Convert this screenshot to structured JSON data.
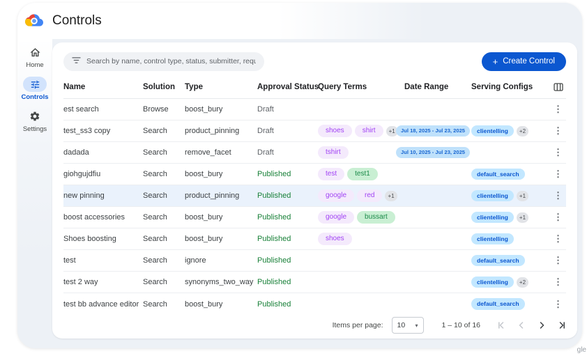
{
  "app": {
    "title": "Controls",
    "watermark": "gle"
  },
  "sidebar": {
    "items": [
      {
        "label": "Home",
        "icon": "home-icon",
        "active": false
      },
      {
        "label": "Controls",
        "icon": "tune-icon",
        "active": true
      },
      {
        "label": "Settings",
        "icon": "gear-icon",
        "active": false
      }
    ]
  },
  "toolbar": {
    "search_placeholder": "Search by name, control type, status, submitter, requested on",
    "create_button_plus": "+",
    "create_button_label": "Create Control"
  },
  "icons": {
    "search_filter": "filter-icon",
    "column_picker": "view-columns-icon",
    "row_menu_glyph": "⋮",
    "select_caret_glyph": "▾"
  },
  "table": {
    "columns": [
      "Name",
      "Solution",
      "Type",
      "Approval Status",
      "Query Terms",
      "Date Range",
      "Serving Configs"
    ],
    "rows": [
      {
        "name": "est search",
        "solution": "Browse",
        "type": "boost_bury",
        "status": "Draft",
        "query_terms": [],
        "query_more": "",
        "date_range": "",
        "serving_configs": [],
        "serving_more": "",
        "highlighted": false
      },
      {
        "name": "test_ss3 copy",
        "solution": "Search",
        "type": "product_pinning",
        "status": "Draft",
        "query_terms": [
          {
            "label": "shoes",
            "color": "purple"
          },
          {
            "label": "shirt",
            "color": "purple"
          }
        ],
        "query_more": "+1",
        "date_range": "Jul 18, 2025 - Jul 23, 2025",
        "serving_configs": [
          "clientelling"
        ],
        "serving_more": "+2",
        "highlighted": false
      },
      {
        "name": "dadada",
        "solution": "Search",
        "type": "remove_facet",
        "status": "Draft",
        "query_terms": [
          {
            "label": "tshirt",
            "color": "purple"
          }
        ],
        "query_more": "",
        "date_range": "Jul 10, 2025 - Jul 23, 2025",
        "serving_configs": [],
        "serving_more": "",
        "highlighted": false
      },
      {
        "name": "giohgujdfiu",
        "solution": "Search",
        "type": "boost_bury",
        "status": "Published",
        "query_terms": [
          {
            "label": "test",
            "color": "purple"
          },
          {
            "label": "test1",
            "color": "green"
          }
        ],
        "query_more": "",
        "date_range": "",
        "serving_configs": [
          "default_search"
        ],
        "serving_more": "",
        "highlighted": false
      },
      {
        "name": "new pinning",
        "solution": "Search",
        "type": "product_pinning",
        "status": "Published",
        "query_terms": [
          {
            "label": "google",
            "color": "purple"
          },
          {
            "label": "red",
            "color": "purple"
          }
        ],
        "query_more": "+1",
        "date_range": "",
        "serving_configs": [
          "clientelling"
        ],
        "serving_more": "+1",
        "highlighted": true
      },
      {
        "name": "boost accessories",
        "solution": "Search",
        "type": "boost_bury",
        "status": "Published",
        "query_terms": [
          {
            "label": "google",
            "color": "purple"
          },
          {
            "label": "bussart",
            "color": "green"
          }
        ],
        "query_more": "",
        "date_range": "",
        "serving_configs": [
          "clientelling"
        ],
        "serving_more": "+1",
        "highlighted": false
      },
      {
        "name": "Shoes boosting",
        "solution": "Search",
        "type": "boost_bury",
        "status": "Published",
        "query_terms": [
          {
            "label": "shoes",
            "color": "purple"
          }
        ],
        "query_more": "",
        "date_range": "",
        "serving_configs": [
          "clientelling"
        ],
        "serving_more": "",
        "highlighted": false
      },
      {
        "name": "test",
        "solution": "Search",
        "type": "ignore",
        "status": "Published",
        "query_terms": [],
        "query_more": "",
        "date_range": "",
        "serving_configs": [
          "default_search"
        ],
        "serving_more": "",
        "highlighted": false
      },
      {
        "name": "test 2 way",
        "solution": "Search",
        "type": "synonyms_two_way",
        "status": "Published",
        "query_terms": [],
        "query_more": "",
        "date_range": "",
        "serving_configs": [
          "clientelling"
        ],
        "serving_more": "+2",
        "highlighted": false
      },
      {
        "name": "test bb advance editor",
        "solution": "Search",
        "type": "boost_bury",
        "status": "Published",
        "query_terms": [],
        "query_more": "",
        "date_range": "",
        "serving_configs": [
          "default_search"
        ],
        "serving_more": "",
        "highlighted": false
      }
    ]
  },
  "pagination": {
    "items_per_page_label": "Items per page:",
    "page_size": "10",
    "range_label": "1 – 10 of 16"
  },
  "colors": {
    "accent_blue": "#0b57d0",
    "window_bg": "#edf1f6",
    "active_nav_pill": "#d2e3fc",
    "chip_purple_bg": "#f4eafc",
    "chip_purple_text": "#a142f4",
    "chip_green_bg": "#c9efd3",
    "chip_green_text": "#1b8a49",
    "chip_blue_bg": "#c2e7ff",
    "chip_blue_text": "#0b57d0",
    "chip_date_bg": "#bfe1fb",
    "chip_date_text": "#1967d2",
    "more_badge_bg": "#e1e3e7",
    "status_draft": "#5f6368",
    "status_published": "#188038",
    "row_highlight": "#eaf2fc"
  }
}
